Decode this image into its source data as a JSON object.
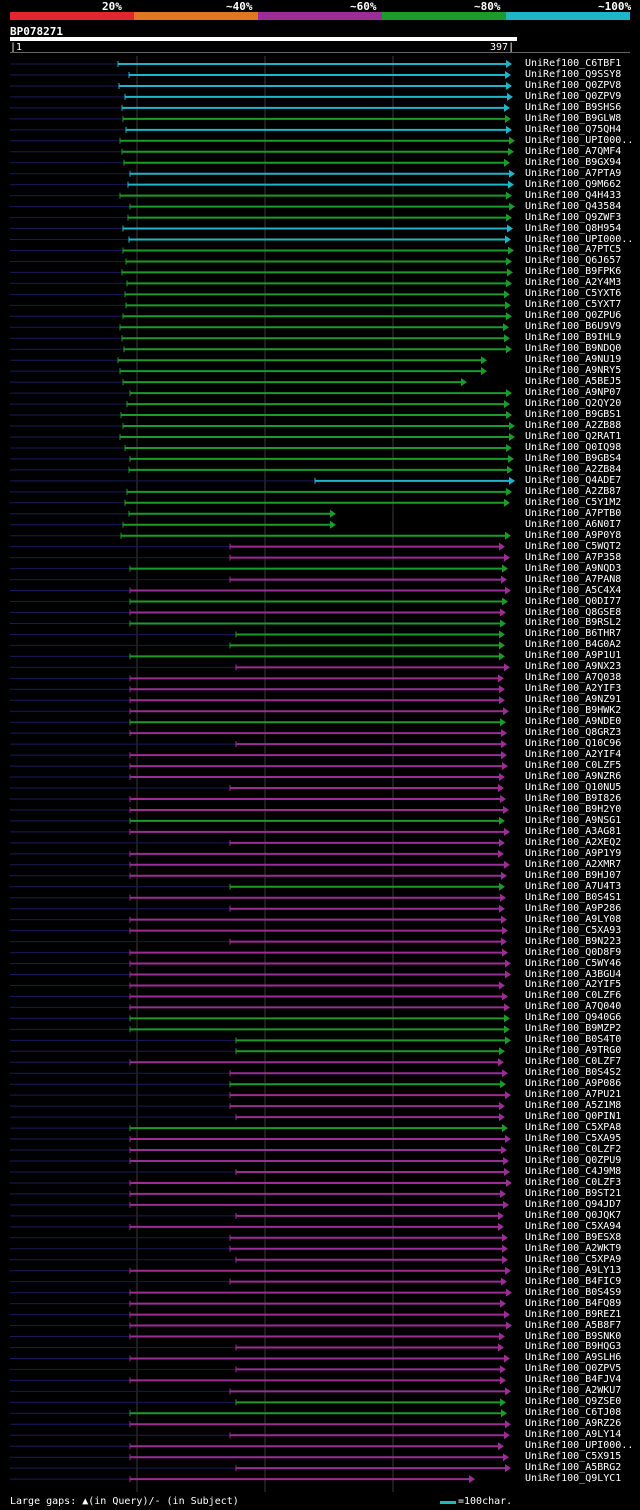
{
  "legend": {
    "bins": [
      {
        "label": "20%",
        "color": "#e0262e"
      },
      {
        "label": "~40%",
        "color": "#e0761e"
      },
      {
        "label": "~60%",
        "color": "#9b2d95"
      },
      {
        "label": "~80%",
        "color": "#1c9a2a"
      },
      {
        "label": "~100%",
        "color": "#1fb5c8"
      }
    ]
  },
  "query": {
    "name": "BP078271",
    "start": "1",
    "end": "397"
  },
  "hits": [
    {
      "label": "UniRef100_C6TBF1",
      "color": "#1fb5c8"
    },
    {
      "label": "UniRef100_Q9SSY8",
      "color": "#1fb5c8"
    },
    {
      "label": "UniRef100_Q0ZPV8",
      "color": "#1fb5c8"
    },
    {
      "label": "UniRef100_Q0ZPV9",
      "color": "#1fb5c8"
    },
    {
      "label": "UniRef100_B9SHS6",
      "color": "#1fb5c8"
    },
    {
      "label": "UniRef100_B9GLW8",
      "color": "#1c9a2a"
    },
    {
      "label": "UniRef100_Q75QH4",
      "color": "#1fb5c8"
    },
    {
      "label": "UniRef100_UPI000..",
      "color": "#1c9a2a"
    },
    {
      "label": "UniRef100_A7QMF4",
      "color": "#1c9a2a"
    },
    {
      "label": "UniRef100_B9GX94",
      "color": "#1c9a2a"
    },
    {
      "label": "UniRef100_A7PTA9",
      "color": "#1fb5c8"
    },
    {
      "label": "UniRef100_Q9M662",
      "color": "#1fb5c8"
    },
    {
      "label": "UniRef100_Q4H433",
      "color": "#1c9a2a"
    },
    {
      "label": "UniRef100_Q43584",
      "color": "#1c9a2a"
    },
    {
      "label": "UniRef100_Q9ZWF3",
      "color": "#1c9a2a"
    },
    {
      "label": "UniRef100_Q8H954",
      "color": "#1fb5c8"
    },
    {
      "label": "UniRef100_UPI000..",
      "color": "#1fb5c8"
    },
    {
      "label": "UniRef100_A7PTC5",
      "color": "#1c9a2a"
    },
    {
      "label": "UniRef100_Q6J657",
      "color": "#1c9a2a"
    },
    {
      "label": "UniRef100_B9FPK6",
      "color": "#1c9a2a"
    },
    {
      "label": "UniRef100_A2Y4M3",
      "color": "#1c9a2a"
    },
    {
      "label": "UniRef100_C5YXT6",
      "color": "#1c9a2a"
    },
    {
      "label": "UniRef100_C5YXT7",
      "color": "#1c9a2a"
    },
    {
      "label": "UniRef100_Q0ZPU6",
      "color": "#1c9a2a"
    },
    {
      "label": "UniRef100_B6U9V9",
      "color": "#1c9a2a"
    },
    {
      "label": "UniRef100_B9IHL9",
      "color": "#1c9a2a"
    },
    {
      "label": "UniRef100_B9NDQ0",
      "color": "#1c9a2a"
    },
    {
      "label": "UniRef100_A9NU19",
      "color": "#1c9a2a"
    },
    {
      "label": "UniRef100_A9NRY5",
      "color": "#1c9a2a"
    },
    {
      "label": "UniRef100_A5BEJ5",
      "color": "#1c9a2a"
    },
    {
      "label": "UniRef100_A9NP07",
      "color": "#1c9a2a"
    },
    {
      "label": "UniRef100_Q2QY20",
      "color": "#1c9a2a"
    },
    {
      "label": "UniRef100_B9GBS1",
      "color": "#1c9a2a"
    },
    {
      "label": "UniRef100_A2ZB88",
      "color": "#1c9a2a"
    },
    {
      "label": "UniRef100_Q2RAT1",
      "color": "#1c9a2a"
    },
    {
      "label": "UniRef100_Q0IQ98",
      "color": "#1c9a2a"
    },
    {
      "label": "UniRef100_B9GBS4",
      "color": "#1c9a2a"
    },
    {
      "label": "UniRef100_A2ZB84",
      "color": "#1c9a2a"
    },
    {
      "label": "UniRef100_Q4ADE7",
      "color": "#1fb5c8"
    },
    {
      "label": "UniRef100_A2ZB87",
      "color": "#1c9a2a"
    },
    {
      "label": "UniRef100_C5Y1M2",
      "color": "#1c9a2a"
    },
    {
      "label": "UniRef100_A7PTB0",
      "color": "#1c9a2a"
    },
    {
      "label": "UniRef100_A6N0I7",
      "color": "#1c9a2a"
    },
    {
      "label": "UniRef100_A9P0Y8",
      "color": "#1c9a2a"
    },
    {
      "label": "UniRef100_C5WQT2",
      "color": "#9b2d95"
    },
    {
      "label": "UniRef100_A7P358",
      "color": "#9b2d95"
    },
    {
      "label": "UniRef100_A9NQD3",
      "color": "#1c9a2a"
    },
    {
      "label": "UniRef100_A7PAN8",
      "color": "#9b2d95"
    },
    {
      "label": "UniRef100_A5C4X4",
      "color": "#9b2d95"
    },
    {
      "label": "UniRef100_Q0DI77",
      "color": "#1c9a2a"
    },
    {
      "label": "UniRef100_Q8GSE8",
      "color": "#9b2d95"
    },
    {
      "label": "UniRef100_B9RSL2",
      "color": "#1c9a2a"
    },
    {
      "label": "UniRef100_B6THR7",
      "color": "#1c9a2a"
    },
    {
      "label": "UniRef100_B4G0A2",
      "color": "#1c9a2a"
    },
    {
      "label": "UniRef100_A9P1U1",
      "color": "#1c9a2a"
    },
    {
      "label": "UniRef100_A9NX23",
      "color": "#9b2d95"
    },
    {
      "label": "UniRef100_A7Q038",
      "color": "#9b2d95"
    },
    {
      "label": "UniRef100_A2YIF3",
      "color": "#9b2d95"
    },
    {
      "label": "UniRef100_A9NZ91",
      "color": "#9b2d95"
    },
    {
      "label": "UniRef100_B9HWK2",
      "color": "#9b2d95"
    },
    {
      "label": "UniRef100_A9NDE0",
      "color": "#1c9a2a"
    },
    {
      "label": "UniRef100_Q8GRZ3",
      "color": "#9b2d95"
    },
    {
      "label": "UniRef100_Q10C96",
      "color": "#9b2d95"
    },
    {
      "label": "UniRef100_A2YIF4",
      "color": "#9b2d95"
    },
    {
      "label": "UniRef100_C0LZF5",
      "color": "#9b2d95"
    },
    {
      "label": "UniRef100_A9NZR6",
      "color": "#9b2d95"
    },
    {
      "label": "UniRef100_Q10NU5",
      "color": "#9b2d95"
    },
    {
      "label": "UniRef100_B9I826",
      "color": "#9b2d95"
    },
    {
      "label": "UniRef100_B9H2Y0",
      "color": "#9b2d95"
    },
    {
      "label": "UniRef100_A9NSG1",
      "color": "#1c9a2a"
    },
    {
      "label": "UniRef100_A3AG81",
      "color": "#9b2d95"
    },
    {
      "label": "UniRef100_A2XEQ2",
      "color": "#9b2d95"
    },
    {
      "label": "UniRef100_A9P1Y9",
      "color": "#9b2d95"
    },
    {
      "label": "UniRef100_A2XMR7",
      "color": "#9b2d95"
    },
    {
      "label": "UniRef100_B9HJ07",
      "color": "#9b2d95"
    },
    {
      "label": "UniRef100_A7U4T3",
      "color": "#1c9a2a"
    },
    {
      "label": "UniRef100_B0S4S1",
      "color": "#9b2d95"
    },
    {
      "label": "UniRef100_A9P286",
      "color": "#9b2d95"
    },
    {
      "label": "UniRef100_A9LY08",
      "color": "#9b2d95"
    },
    {
      "label": "UniRef100_C5XA93",
      "color": "#9b2d95"
    },
    {
      "label": "UniRef100_B9N223",
      "color": "#9b2d95"
    },
    {
      "label": "UniRef100_Q0D8F9",
      "color": "#9b2d95"
    },
    {
      "label": "UniRef100_C5WY46",
      "color": "#9b2d95"
    },
    {
      "label": "UniRef100_A3BGU4",
      "color": "#9b2d95"
    },
    {
      "label": "UniRef100_A2YIF5",
      "color": "#9b2d95"
    },
    {
      "label": "UniRef100_C0LZF6",
      "color": "#9b2d95"
    },
    {
      "label": "UniRef100_A7Q040",
      "color": "#9b2d95"
    },
    {
      "label": "UniRef100_Q940G6",
      "color": "#1c9a2a"
    },
    {
      "label": "UniRef100_B9MZP2",
      "color": "#1c9a2a"
    },
    {
      "label": "UniRef100_B0S4T0",
      "color": "#1c9a2a"
    },
    {
      "label": "UniRef100_A9TRG0",
      "color": "#1c9a2a"
    },
    {
      "label": "UniRef100_C0LZF7",
      "color": "#9b2d95"
    },
    {
      "label": "UniRef100_B0S4S2",
      "color": "#9b2d95"
    },
    {
      "label": "UniRef100_A9P086",
      "color": "#1c9a2a"
    },
    {
      "label": "UniRef100_A7PU21",
      "color": "#9b2d95"
    },
    {
      "label": "UniRef100_A5Z1M8",
      "color": "#9b2d95"
    },
    {
      "label": "UniRef100_Q0PIN1",
      "color": "#9b2d95"
    },
    {
      "label": "UniRef100_C5XPA8",
      "color": "#1c9a2a"
    },
    {
      "label": "UniRef100_C5XA95",
      "color": "#9b2d95"
    },
    {
      "label": "UniRef100_C0LZF2",
      "color": "#9b2d95"
    },
    {
      "label": "UniRef100_Q0ZPU9",
      "color": "#9b2d95"
    },
    {
      "label": "UniRef100_C4J9M8",
      "color": "#9b2d95"
    },
    {
      "label": "UniRef100_C0LZF3",
      "color": "#9b2d95"
    },
    {
      "label": "UniRef100_B9ST21",
      "color": "#9b2d95"
    },
    {
      "label": "UniRef100_Q94JD7",
      "color": "#9b2d95"
    },
    {
      "label": "UniRef100_Q0JQK7",
      "color": "#9b2d95"
    },
    {
      "label": "UniRef100_C5XA94",
      "color": "#9b2d95"
    },
    {
      "label": "UniRef100_B9ESX8",
      "color": "#9b2d95"
    },
    {
      "label": "UniRef100_A2WKT9",
      "color": "#9b2d95"
    },
    {
      "label": "UniRef100_C5XPA9",
      "color": "#9b2d95"
    },
    {
      "label": "UniRef100_A9LY13",
      "color": "#9b2d95"
    },
    {
      "label": "UniRef100_B4FIC9",
      "color": "#9b2d95"
    },
    {
      "label": "UniRef100_B0S4S9",
      "color": "#9b2d95"
    },
    {
      "label": "UniRef100_B4FQ89",
      "color": "#9b2d95"
    },
    {
      "label": "UniRef100_B9REZ1",
      "color": "#9b2d95"
    },
    {
      "label": "UniRef100_A5B8F7",
      "color": "#9b2d95"
    },
    {
      "label": "UniRef100_B9SNK0",
      "color": "#9b2d95"
    },
    {
      "label": "UniRef100_B9HQG3",
      "color": "#9b2d95"
    },
    {
      "label": "UniRef100_A9SLH6",
      "color": "#9b2d95"
    },
    {
      "label": "UniRef100_Q0ZPV5",
      "color": "#9b2d95"
    },
    {
      "label": "UniRef100_B4FJV4",
      "color": "#9b2d95"
    },
    {
      "label": "UniRef100_A2WKU7",
      "color": "#9b2d95"
    },
    {
      "label": "UniRef100_Q9ZSE0",
      "color": "#1c9a2a"
    },
    {
      "label": "UniRef100_C6TJ08",
      "color": "#1c9a2a"
    },
    {
      "label": "UniRef100_A9RZ26",
      "color": "#9b2d95"
    },
    {
      "label": "UniRef100_A9LY14",
      "color": "#9b2d95"
    },
    {
      "label": "UniRef100_UPI000..",
      "color": "#9b2d95"
    },
    {
      "label": "UniRef100_C5X915",
      "color": "#9b2d95"
    },
    {
      "label": "UniRef100_A5BRG2",
      "color": "#9b2d95"
    },
    {
      "label": "UniRef100_Q9LYC1",
      "color": "#9b2d95"
    }
  ],
  "footer": {
    "gaps_text": "Large gaps: ▲(in Query)/- (in Subject)",
    "scale_text": "=100char."
  }
}
